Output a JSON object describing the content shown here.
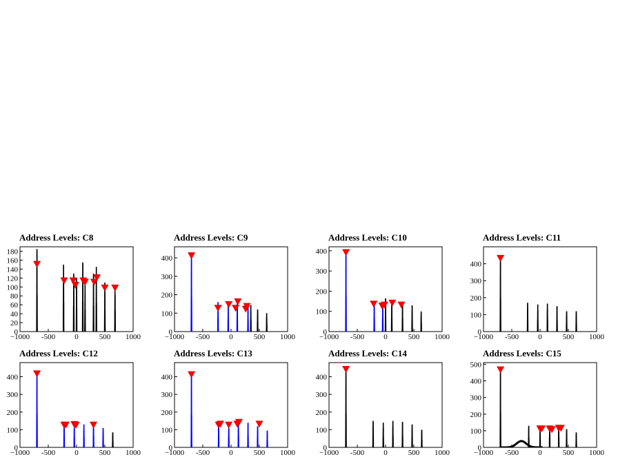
{
  "chart_data": [
    {
      "type": "line",
      "title": "Address Levels: C8",
      "xlim": [
        -1000,
        1000
      ],
      "ylim": [
        0,
        190
      ],
      "xticks": [
        -1000,
        -500,
        0,
        500,
        1000
      ],
      "xtick_labels": [
        "−1000",
        "-500",
        "0",
        "500",
        "1000"
      ],
      "yticks": [
        0,
        20,
        40,
        60,
        80,
        100,
        120,
        140,
        160,
        180
      ],
      "peaks": [
        {
          "x": -700,
          "y": 185
        },
        {
          "x": -230,
          "y": 150
        },
        {
          "x": -50,
          "y": 130
        },
        {
          "x": 0,
          "y": 120
        },
        {
          "x": 110,
          "y": 155
        },
        {
          "x": 150,
          "y": 110
        },
        {
          "x": 300,
          "y": 130
        },
        {
          "x": 350,
          "y": 145
        },
        {
          "x": 500,
          "y": 110
        },
        {
          "x": 680,
          "y": 105
        }
      ],
      "markers": [
        {
          "x": -700,
          "y": 150
        },
        {
          "x": -220,
          "y": 113
        },
        {
          "x": -60,
          "y": 113
        },
        {
          "x": -20,
          "y": 103
        },
        {
          "x": 120,
          "y": 113
        },
        {
          "x": 150,
          "y": 110
        },
        {
          "x": 310,
          "y": 110
        },
        {
          "x": 360,
          "y": 120
        },
        {
          "x": 500,
          "y": 97
        },
        {
          "x": 680,
          "y": 97
        }
      ],
      "highlight_color": ""
    },
    {
      "type": "line",
      "title": "Address Levels: C9",
      "xlim": [
        -1000,
        1000
      ],
      "ylim": [
        0,
        460
      ],
      "xticks": [
        -1000,
        -500,
        0,
        500,
        1000
      ],
      "xtick_labels": [
        "−1000",
        "-500",
        "0",
        "500",
        "1000"
      ],
      "yticks": [
        0,
        100,
        200,
        300,
        400
      ],
      "peaks": [
        {
          "x": -700,
          "y": 420
        },
        {
          "x": -230,
          "y": 160
        },
        {
          "x": -50,
          "y": 150
        },
        {
          "x": 110,
          "y": 165
        },
        {
          "x": 300,
          "y": 140
        },
        {
          "x": 350,
          "y": 145
        },
        {
          "x": 470,
          "y": 120
        },
        {
          "x": 630,
          "y": 100
        }
      ],
      "markers": [
        {
          "x": -700,
          "y": 410
        },
        {
          "x": -230,
          "y": 125
        },
        {
          "x": -40,
          "y": 145
        },
        {
          "x": 80,
          "y": 125
        },
        {
          "x": 120,
          "y": 160
        },
        {
          "x": 260,
          "y": 120
        },
        {
          "x": 280,
          "y": 135
        }
      ],
      "highlight_color": "#0000ff",
      "highlight_indices": [
        0,
        1,
        2,
        3,
        4
      ]
    },
    {
      "type": "line",
      "title": "Address Levels: C10",
      "xlim": [
        -1000,
        1000
      ],
      "ylim": [
        0,
        420
      ],
      "xticks": [
        -1000,
        -500,
        0,
        500,
        1000
      ],
      "xtick_labels": [
        "−1000",
        "-500",
        "0",
        "500",
        "1000"
      ],
      "yticks": [
        0,
        100,
        200,
        300,
        400
      ],
      "peaks": [
        {
          "x": -700,
          "y": 400
        },
        {
          "x": -200,
          "y": 150
        },
        {
          "x": -50,
          "y": 145
        },
        {
          "x": 0,
          "y": 165
        },
        {
          "x": 110,
          "y": 150
        },
        {
          "x": 300,
          "y": 145
        },
        {
          "x": 470,
          "y": 130
        },
        {
          "x": 630,
          "y": 100
        }
      ],
      "markers": [
        {
          "x": -700,
          "y": 390
        },
        {
          "x": -210,
          "y": 135
        },
        {
          "x": -60,
          "y": 125
        },
        {
          "x": -20,
          "y": 130
        },
        {
          "x": 120,
          "y": 140
        },
        {
          "x": 280,
          "y": 130
        }
      ],
      "highlight_color": "#0000ff",
      "highlight_indices": [
        0,
        1,
        2
      ]
    },
    {
      "type": "line",
      "title": "Address Levels: C11",
      "xlim": [
        -1000,
        1000
      ],
      "ylim": [
        0,
        500
      ],
      "xticks": [
        -1000,
        -500,
        0,
        500,
        1000
      ],
      "xtick_labels": [
        "−1000",
        "-500",
        "0",
        "500",
        "1000"
      ],
      "yticks": [
        0,
        100,
        200,
        300,
        400
      ],
      "peaks": [
        {
          "x": -700,
          "y": 440
        },
        {
          "x": -220,
          "y": 170
        },
        {
          "x": -40,
          "y": 160
        },
        {
          "x": 130,
          "y": 165
        },
        {
          "x": 300,
          "y": 150
        },
        {
          "x": 470,
          "y": 120
        },
        {
          "x": 640,
          "y": 120
        }
      ],
      "markers": [
        {
          "x": -700,
          "y": 430
        }
      ],
      "highlight_color": ""
    },
    {
      "type": "line",
      "title": "Address Levels: C12",
      "xlim": [
        -1000,
        1000
      ],
      "ylim": [
        0,
        480
      ],
      "xticks": [
        -1000,
        -500,
        0,
        500,
        1000
      ],
      "xtick_labels": [
        "−1000",
        "-500",
        "0",
        "500",
        "1000"
      ],
      "yticks": [
        0,
        100,
        200,
        300,
        400
      ],
      "peaks": [
        {
          "x": -700,
          "y": 420
        },
        {
          "x": -220,
          "y": 140
        },
        {
          "x": -40,
          "y": 135
        },
        {
          "x": 130,
          "y": 130
        },
        {
          "x": 300,
          "y": 145
        },
        {
          "x": 470,
          "y": 110
        },
        {
          "x": 640,
          "y": 85
        }
      ],
      "markers": [
        {
          "x": -700,
          "y": 415
        },
        {
          "x": -220,
          "y": 125
        },
        {
          "x": -190,
          "y": 125
        },
        {
          "x": -40,
          "y": 128
        },
        {
          "x": -10,
          "y": 124
        },
        {
          "x": 300,
          "y": 125
        }
      ],
      "highlight_color": "#0000ff",
      "highlight_indices": [
        0,
        1,
        2,
        3,
        4,
        5
      ]
    },
    {
      "type": "line",
      "title": "Address Levels: C13",
      "xlim": [
        -1000,
        1000
      ],
      "ylim": [
        0,
        480
      ],
      "xticks": [
        -1000,
        -500,
        0,
        500,
        1000
      ],
      "xtick_labels": [
        "−1000",
        "-500",
        "0",
        "500",
        "1000"
      ],
      "yticks": [
        0,
        100,
        200,
        300,
        400
      ],
      "peaks": [
        {
          "x": -700,
          "y": 420
        },
        {
          "x": -220,
          "y": 140
        },
        {
          "x": -40,
          "y": 135
        },
        {
          "x": 130,
          "y": 140
        },
        {
          "x": 300,
          "y": 140
        },
        {
          "x": 470,
          "y": 120
        },
        {
          "x": 640,
          "y": 95
        }
      ],
      "markers": [
        {
          "x": -700,
          "y": 410
        },
        {
          "x": -220,
          "y": 125
        },
        {
          "x": -190,
          "y": 130
        },
        {
          "x": -40,
          "y": 125
        },
        {
          "x": 110,
          "y": 130
        },
        {
          "x": 140,
          "y": 140
        },
        {
          "x": 500,
          "y": 130
        }
      ],
      "highlight_color": "#0000ff",
      "highlight_indices": [
        0,
        1,
        2,
        3,
        4,
        5,
        6
      ]
    },
    {
      "type": "line",
      "title": "Address Levels: C14",
      "xlim": [
        -1000,
        1000
      ],
      "ylim": [
        0,
        480
      ],
      "xticks": [
        -1000,
        -500,
        0,
        500,
        1000
      ],
      "xtick_labels": [
        "−1000",
        "-500",
        "0",
        "500",
        "1000"
      ],
      "yticks": [
        0,
        100,
        200,
        300,
        400
      ],
      "peaks": [
        {
          "x": -700,
          "y": 440
        },
        {
          "x": -220,
          "y": 150
        },
        {
          "x": -40,
          "y": 140
        },
        {
          "x": 130,
          "y": 150
        },
        {
          "x": 300,
          "y": 145
        },
        {
          "x": 470,
          "y": 130
        },
        {
          "x": 640,
          "y": 100
        }
      ],
      "markers": [
        {
          "x": -700,
          "y": 440
        }
      ],
      "highlight_color": ""
    },
    {
      "type": "line",
      "title": "Address Levels: C15",
      "xlim": [
        -1000,
        1000
      ],
      "ylim": [
        0,
        510
      ],
      "xticks": [
        -1000,
        -500,
        0,
        500,
        1000
      ],
      "xtick_labels": [
        "−1000",
        "-500",
        "0",
        "500",
        "1000"
      ],
      "yticks": [
        0,
        100,
        200,
        300,
        400,
        500
      ],
      "peaks": [
        {
          "x": -700,
          "y": 470
        },
        {
          "x": -200,
          "y": 130
        },
        {
          "x": 0,
          "y": 120
        },
        {
          "x": 170,
          "y": 125
        },
        {
          "x": 330,
          "y": 130
        },
        {
          "x": 470,
          "y": 110
        },
        {
          "x": 640,
          "y": 90
        }
      ],
      "markers": [
        {
          "x": 0,
          "y": 110
        },
        {
          "x": 30,
          "y": 110
        },
        {
          "x": 170,
          "y": 110
        },
        {
          "x": 210,
          "y": 105
        },
        {
          "x": 330,
          "y": 113
        },
        {
          "x": 370,
          "y": 113
        },
        {
          "x": -700,
          "y": 465
        }
      ],
      "bump": {
        "center": -330,
        "height": 38,
        "width": 240
      },
      "highlight_color": ""
    }
  ]
}
